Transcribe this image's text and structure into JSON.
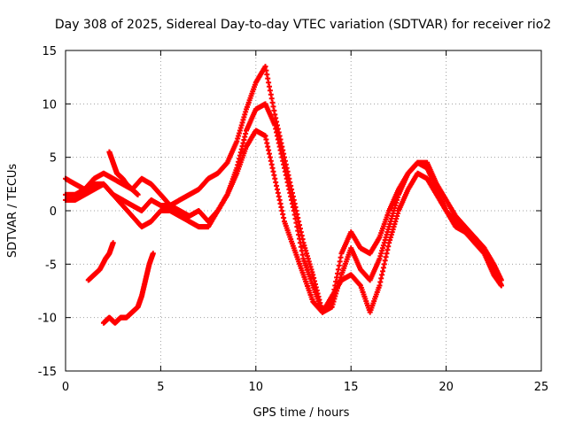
{
  "chart_data": {
    "type": "scatter",
    "title": "Day 308 of 2025, Sidereal Day-to-day VTEC variation (SDTVAR) for receiver rio2",
    "xlabel": "GPS time / hours",
    "ylabel": "SDTVAR / TECUs",
    "xlim": [
      0,
      25
    ],
    "ylim": [
      -15,
      15
    ],
    "xticks": [
      0,
      5,
      10,
      15,
      20,
      25
    ],
    "yticks": [
      -15,
      -10,
      -5,
      0,
      5,
      10,
      15
    ],
    "grid": true,
    "marker": "plus",
    "color": "#ff0000",
    "series": [
      {
        "x": [
          0,
          0.5,
          1,
          1.5,
          2,
          2.5,
          3,
          3.5,
          4,
          4.5,
          5,
          5.5,
          6,
          6.5,
          7,
          7.5,
          8,
          8.5,
          9,
          9.5,
          10,
          10.5,
          11,
          11.5,
          12,
          12.5,
          13,
          13.5,
          14,
          14.5,
          15,
          15.5,
          16,
          16.5,
          17,
          17.5,
          18,
          18.5,
          19,
          19.5,
          20,
          20.5,
          21,
          21.5,
          22,
          22.5,
          22.9
        ],
        "y": [
          3,
          2.5,
          2,
          3,
          3.5,
          3,
          2.5,
          2,
          3,
          2.5,
          1.5,
          0.5,
          0,
          -0.5,
          0,
          -1,
          0,
          1.5,
          4,
          7.5,
          9.5,
          10,
          8,
          4,
          0,
          -4.5,
          -7,
          -9.5,
          -8.5,
          -4,
          -2,
          -3.5,
          -4,
          -2.5,
          0,
          2,
          3.5,
          4.5,
          4,
          2,
          0,
          -1.5,
          -2,
          -2.5,
          -3.5,
          -5,
          -6.5
        ]
      },
      {
        "x": [
          0,
          0.5,
          1,
          1.5,
          2,
          2.5,
          3,
          3.5,
          4,
          4.5,
          5,
          5.5,
          6,
          6.5,
          7,
          7.5,
          8,
          8.5,
          9,
          9.5,
          10,
          10.5,
          11,
          11.5,
          12,
          12.5,
          13,
          13.5,
          14,
          14.5,
          15,
          15.5,
          16,
          16.5,
          17,
          17.5,
          18,
          18.5,
          19,
          19.5,
          20,
          20.5,
          21,
          21.5,
          22,
          22.5,
          22.9
        ],
        "y": [
          1.5,
          1.5,
          2,
          2.5,
          2.5,
          1.5,
          1,
          0.5,
          0,
          1,
          0.5,
          0.5,
          1,
          1.5,
          2,
          3,
          3.5,
          4.5,
          6.5,
          9.5,
          12,
          13.5,
          9,
          5,
          1,
          -3,
          -6,
          -9.5,
          -9,
          -6,
          -3.5,
          -5.5,
          -6.5,
          -4.5,
          -1.5,
          1.5,
          3.5,
          4.5,
          4.5,
          2.5,
          1,
          -0.5,
          -1.5,
          -2.5,
          -3.5,
          -5.5,
          -7
        ]
      },
      {
        "x": [
          0,
          0.5,
          1,
          1.5,
          2,
          2.5,
          3,
          3.5,
          4,
          4.5,
          5,
          5.5,
          6,
          6.5,
          7,
          7.5,
          8,
          8.5,
          9,
          9.5,
          10,
          10.5,
          11,
          11.5,
          12,
          12.5,
          13,
          13.5,
          14,
          14.5,
          15,
          15.5,
          16,
          16.5,
          17,
          17.5,
          18,
          18.5,
          19,
          19.5,
          20,
          20.5,
          21,
          21.5,
          22,
          22.5,
          22.9
        ],
        "y": [
          1,
          1,
          1.5,
          2,
          2.5,
          1.5,
          0.5,
          -0.5,
          -1.5,
          -1,
          0,
          0,
          -0.5,
          -1,
          -1.5,
          -1.5,
          0,
          1.5,
          3.5,
          6,
          7.5,
          7,
          3,
          -1,
          -3.5,
          -6,
          -8.5,
          -9.5,
          -8,
          -6.5,
          -6,
          -7,
          -9.5,
          -7,
          -3,
          0,
          2,
          3.5,
          3,
          1.5,
          0,
          -1,
          -2,
          -3,
          -4,
          -6,
          -7
        ]
      },
      {
        "x": [
          2,
          2.3,
          2.6,
          2.9,
          3.2,
          3.5,
          3.8,
          4,
          4.2,
          4.4,
          4.6
        ],
        "y": [
          -10.5,
          -10,
          -10.5,
          -10,
          -10,
          -9.5,
          -9,
          -8,
          -6.5,
          -5,
          -4
        ]
      },
      {
        "x": [
          1.2,
          1.5,
          1.8,
          2.1,
          2.3,
          2.5
        ],
        "y": [
          -6.5,
          -6,
          -5.5,
          -4.5,
          -4,
          -3
        ]
      },
      {
        "x": [
          2.3,
          2.5,
          2.7,
          3,
          3.2,
          3.5,
          3.8
        ],
        "y": [
          5.5,
          4.5,
          3.5,
          3,
          2.5,
          2,
          1.5
        ]
      }
    ]
  }
}
